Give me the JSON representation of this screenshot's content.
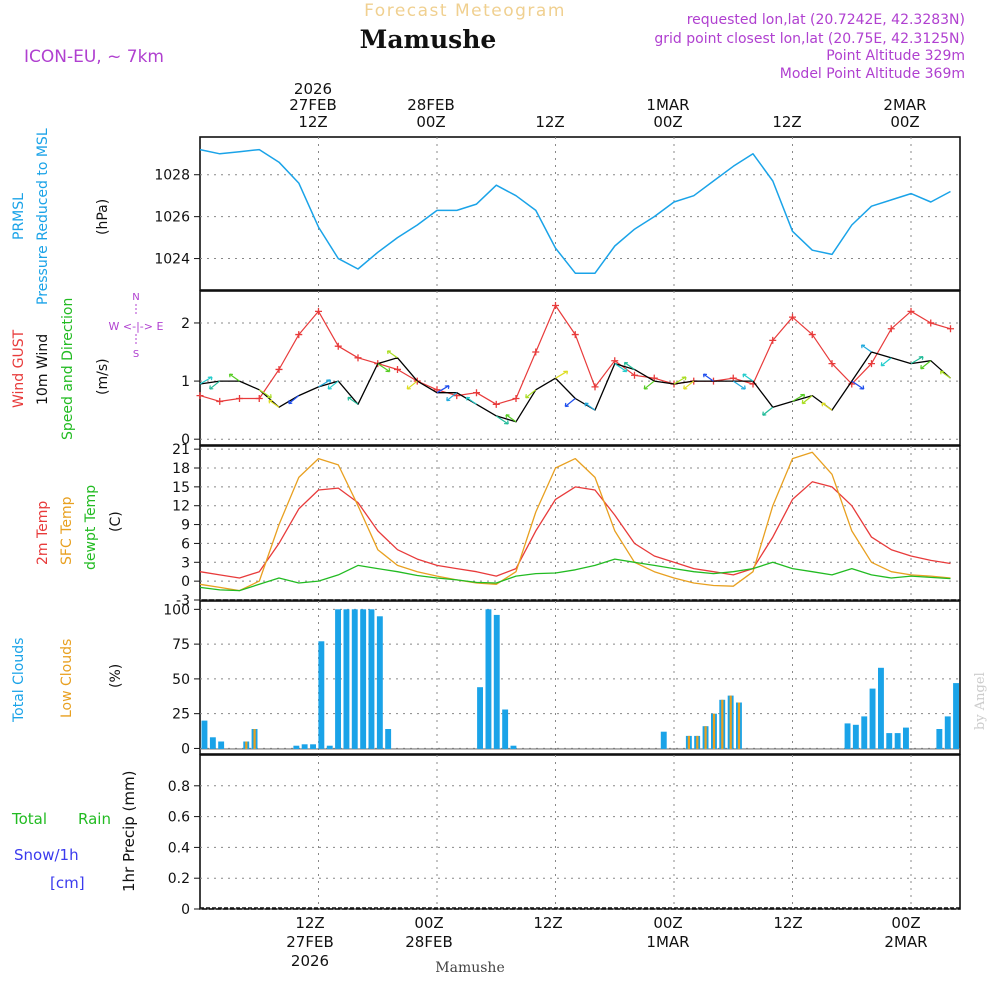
{
  "header": {
    "subtitle": "Forecast Meteogram",
    "location": "Mamushe",
    "model": "ICON-EU, ~ 7km",
    "requested": "requested lon,lat (20.7242E, 42.3283N)",
    "grid_point": "grid point closest lon,lat (20.75E, 42.3125N)",
    "point_altitude": "Point Altitude 329m",
    "model_altitude": "Model Point Altitude 369m"
  },
  "time_axis": {
    "top_year": "2026",
    "top": [
      {
        "day": "27FEB",
        "hour": "12Z",
        "h": 12
      },
      {
        "day": "28FEB",
        "hour": "00Z",
        "h": 24
      },
      {
        "day": "",
        "hour": "12Z",
        "h": 36
      },
      {
        "day": "1MAR",
        "hour": "00Z",
        "h": 48
      },
      {
        "day": "",
        "hour": "12Z",
        "h": 60
      },
      {
        "day": "2MAR",
        "hour": "00Z",
        "h": 72
      }
    ],
    "bottom_year": "2026",
    "bottom": [
      {
        "hour": "12Z",
        "day": "27FEB",
        "h": 12
      },
      {
        "hour": "00Z",
        "day": "28FEB",
        "h": 24
      },
      {
        "hour": "12Z",
        "day": "",
        "h": 36
      },
      {
        "hour": "00Z",
        "day": "1MAR",
        "h": 48
      },
      {
        "hour": "12Z",
        "day": "",
        "h": 60
      },
      {
        "hour": "00Z",
        "day": "2MAR",
        "h": 72
      }
    ],
    "footer": "Mamushe",
    "watermark": "by Angel"
  },
  "colors": {
    "pressure": "#1aa3e8",
    "gust": "#e83b3b",
    "wind": "#000000",
    "direction": "#22bb22",
    "temp2m": "#e83b3b",
    "sfc": "#e8a020",
    "dewpt": "#22bb22",
    "clouds": "#1aa3e8",
    "lowclouds": "#e8a020",
    "rain": "#22bb22",
    "snow": "#3a3aee",
    "purple": "#b040d0",
    "grid": "#888888"
  },
  "panel_labels": {
    "pressure": {
      "l1": "PRMSL",
      "l2": "Pressure Reduced to MSL",
      "unit": "(hPa)"
    },
    "wind": {
      "l1": "Wind GUST",
      "l2": "10m Wind",
      "l3": "Speed and Direction",
      "unit": "(m/s)",
      "compass_n": "N",
      "compass_s": "S",
      "compass_ew": "W <-|-> E"
    },
    "temp": {
      "l1": "2m Temp",
      "l2": "SFC Temp",
      "l3": "dewpt Temp",
      "unit": "(C)"
    },
    "clouds": {
      "l1": "Total Clouds",
      "l2": "Low Clouds",
      "unit": "(%)"
    },
    "precip": {
      "l1": "Total",
      "l1b": "Rain",
      "l2": "Snow/1h",
      "l3": "[cm]",
      "unit": "1hr Precip (mm)"
    }
  },
  "chart_data": [
    {
      "type": "line",
      "title": "PRMSL Pressure Reduced to MSL",
      "ylabel": "(hPa)",
      "ylim": [
        1022.5,
        1029.8
      ],
      "yticks": [
        1024,
        1026,
        1028
      ],
      "x_hours": [
        0,
        2,
        4,
        6,
        8,
        10,
        12,
        14,
        16,
        18,
        20,
        22,
        24,
        26,
        28,
        30,
        32,
        34,
        36,
        38,
        40,
        42,
        44,
        46,
        48,
        50,
        52,
        54,
        56,
        58,
        60,
        62,
        64,
        66,
        68,
        70,
        72,
        74,
        76
      ],
      "series": [
        {
          "name": "PRMSL",
          "values": [
            1029.2,
            1029.0,
            1029.1,
            1029.2,
            1028.6,
            1027.6,
            1025.5,
            1024.0,
            1023.5,
            1024.3,
            1025.0,
            1025.6,
            1026.3,
            1026.3,
            1026.6,
            1027.5,
            1027.0,
            1026.3,
            1024.5,
            1023.3,
            1023.3,
            1024.6,
            1025.4,
            1026.0,
            1026.7,
            1027.0,
            1027.7,
            1028.4,
            1029.0,
            1027.7,
            1025.3,
            1024.4,
            1024.2,
            1025.6,
            1026.5,
            1026.8,
            1027.1,
            1026.7,
            1027.2
          ]
        }
      ]
    },
    {
      "type": "line",
      "title": "Wind GUST / 10m Wind Speed and Direction",
      "ylabel": "(m/s)",
      "ylim": [
        -0.1,
        2.55
      ],
      "yticks": [
        0,
        1,
        2
      ],
      "x_hours": [
        0,
        2,
        4,
        6,
        8,
        10,
        12,
        14,
        16,
        18,
        20,
        22,
        24,
        26,
        28,
        30,
        32,
        34,
        36,
        38,
        40,
        42,
        44,
        46,
        48,
        50,
        52,
        54,
        56,
        58,
        60,
        62,
        64,
        66,
        68,
        70,
        72,
        74,
        76
      ],
      "series": [
        {
          "name": "Wind GUST",
          "values": [
            0.75,
            0.65,
            0.7,
            0.7,
            1.2,
            1.8,
            2.2,
            1.6,
            1.4,
            1.3,
            1.2,
            1.0,
            0.85,
            0.75,
            0.8,
            0.6,
            0.7,
            1.5,
            2.3,
            1.8,
            0.9,
            1.35,
            1.1,
            1.05,
            0.95,
            1.0,
            1.0,
            1.05,
            0.95,
            1.7,
            2.1,
            1.8,
            1.3,
            0.95,
            1.3,
            1.9,
            2.2,
            2.0,
            1.9
          ]
        },
        {
          "name": "10m Wind",
          "values": [
            0.95,
            1.0,
            1.0,
            0.85,
            0.55,
            0.75,
            0.9,
            1.0,
            0.6,
            1.3,
            1.4,
            1.0,
            0.8,
            0.8,
            0.6,
            0.4,
            0.3,
            0.85,
            1.05,
            0.7,
            0.5,
            1.3,
            1.2,
            1.0,
            0.95,
            1.0,
            1.0,
            1.0,
            1.0,
            0.55,
            0.65,
            0.75,
            0.5,
            1.0,
            1.5,
            1.4,
            1.3,
            1.35,
            1.05
          ]
        }
      ]
    },
    {
      "type": "line",
      "title": "2m Temp / SFC Temp / dewpt Temp",
      "ylabel": "(C)",
      "ylim": [
        -3,
        21.5
      ],
      "yticks": [
        -3,
        0,
        3,
        6,
        9,
        12,
        15,
        18,
        21
      ],
      "x_hours": [
        0,
        2,
        4,
        6,
        8,
        10,
        12,
        14,
        16,
        18,
        20,
        22,
        24,
        26,
        28,
        30,
        32,
        34,
        36,
        38,
        40,
        42,
        44,
        46,
        48,
        50,
        52,
        54,
        56,
        58,
        60,
        62,
        64,
        66,
        68,
        70,
        72,
        74,
        76
      ],
      "series": [
        {
          "name": "2m Temp",
          "values": [
            1.5,
            1.0,
            0.5,
            1.5,
            6.0,
            11.5,
            14.5,
            14.8,
            12.5,
            8.0,
            5.0,
            3.5,
            2.5,
            2.0,
            1.5,
            0.8,
            2.0,
            8.0,
            13.0,
            15.0,
            14.5,
            10.5,
            6.0,
            4.0,
            3.0,
            2.0,
            1.5,
            1.0,
            2.0,
            7.0,
            13.0,
            15.8,
            15.0,
            12.0,
            7.0,
            5.0,
            4.0,
            3.3,
            2.8
          ]
        },
        {
          "name": "SFC Temp",
          "values": [
            -0.5,
            -1.0,
            -1.5,
            0.0,
            9.0,
            16.5,
            19.5,
            18.5,
            12.0,
            5.0,
            2.5,
            1.5,
            0.8,
            0.2,
            -0.3,
            -0.5,
            1.5,
            11.0,
            18.0,
            19.5,
            16.5,
            8.0,
            3.0,
            1.5,
            0.5,
            -0.3,
            -0.7,
            -0.8,
            1.5,
            12.0,
            19.5,
            20.5,
            17.0,
            8.0,
            3.0,
            1.5,
            1.0,
            0.8,
            0.5
          ]
        },
        {
          "name": "dewpt Temp",
          "values": [
            -1.0,
            -1.4,
            -1.5,
            -0.5,
            0.5,
            -0.3,
            0.0,
            1.0,
            2.5,
            2.0,
            1.5,
            0.9,
            0.5,
            0.2,
            -0.2,
            -0.3,
            0.8,
            1.2,
            1.3,
            1.8,
            2.5,
            3.5,
            3.0,
            2.5,
            2.0,
            1.5,
            1.2,
            1.5,
            2.0,
            3.0,
            2.0,
            1.5,
            1.0,
            2.0,
            1.0,
            0.5,
            0.8,
            0.6,
            0.4
          ]
        }
      ]
    },
    {
      "type": "bar",
      "title": "Total Clouds / Low Clouds",
      "ylabel": "(%)",
      "ylim": [
        -4,
        106
      ],
      "yticks": [
        0,
        25,
        50,
        75,
        100
      ],
      "series": [
        {
          "name": "Total Clouds",
          "bars": [
            [
              0,
              20
            ],
            [
              1,
              8
            ],
            [
              2,
              5
            ],
            [
              5,
              5
            ],
            [
              6,
              14
            ],
            [
              11,
              2
            ],
            [
              12,
              3
            ],
            [
              13,
              3
            ],
            [
              14,
              77
            ],
            [
              15,
              2
            ],
            [
              16,
              100
            ],
            [
              17,
              100
            ],
            [
              18,
              100
            ],
            [
              19,
              100
            ],
            [
              20,
              100
            ],
            [
              21,
              95
            ],
            [
              22,
              14
            ],
            [
              33,
              44
            ],
            [
              34,
              100
            ],
            [
              35,
              96
            ],
            [
              36,
              28
            ],
            [
              37,
              2
            ],
            [
              55,
              12
            ],
            [
              58,
              9
            ],
            [
              59,
              9
            ],
            [
              60,
              16
            ],
            [
              61,
              25
            ],
            [
              62,
              35
            ],
            [
              63,
              38
            ],
            [
              64,
              33
            ],
            [
              77,
              18
            ],
            [
              78,
              17
            ],
            [
              79,
              23
            ],
            [
              80,
              43
            ],
            [
              81,
              58
            ],
            [
              82,
              11
            ],
            [
              83,
              11
            ],
            [
              84,
              15
            ],
            [
              88,
              14
            ],
            [
              89,
              23
            ],
            [
              90,
              47
            ]
          ]
        },
        {
          "name": "Low Clouds",
          "bars": [
            [
              5,
              5
            ],
            [
              6,
              14
            ],
            [
              58,
              9
            ],
            [
              59,
              9
            ],
            [
              60,
              16
            ],
            [
              61,
              25
            ],
            [
              62,
              35
            ],
            [
              63,
              38
            ],
            [
              64,
              33
            ]
          ]
        }
      ]
    },
    {
      "type": "bar",
      "title": "Total Rain / Snow 1h",
      "ylabel": "1hr Precip (mm)",
      "ylim": [
        0,
        1.0
      ],
      "yticks": [
        0,
        0.2,
        0.4,
        0.6,
        0.8
      ],
      "series": [
        {
          "name": "Total Rain",
          "values": []
        }
      ]
    }
  ]
}
